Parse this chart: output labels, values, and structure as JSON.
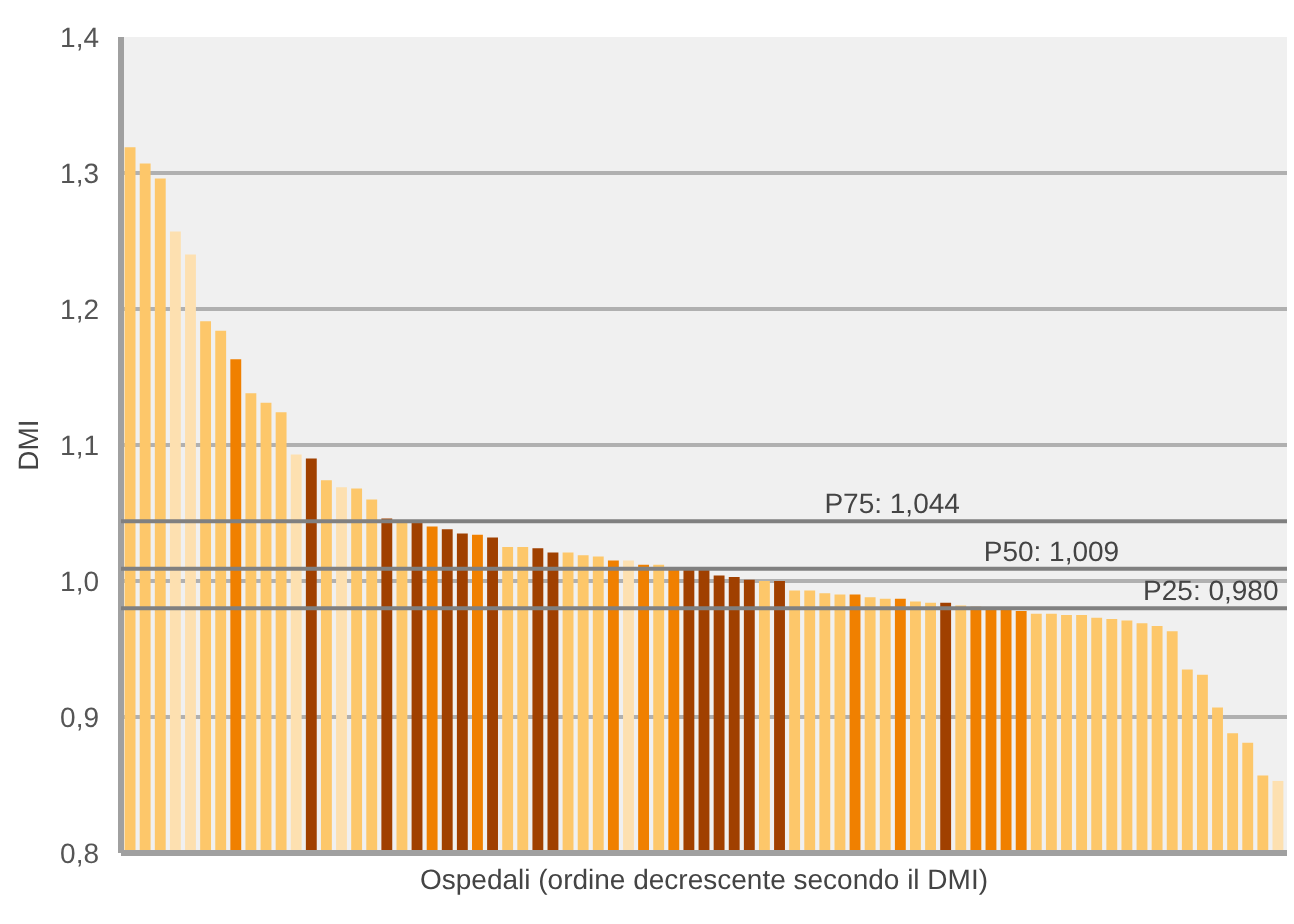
{
  "chart_data": {
    "type": "bar",
    "xlabel": "Ospedali (ordine decrescente secondo il DMI)",
    "ylabel": "DMI",
    "categories": [
      null,
      null,
      null,
      null,
      null,
      null,
      null,
      null,
      null,
      null,
      null,
      null,
      null,
      null,
      null,
      null,
      null,
      null,
      null,
      null,
      null,
      null,
      null,
      null,
      null,
      null,
      null,
      null,
      null,
      null,
      null,
      null,
      null,
      null,
      null,
      null,
      null,
      null,
      null,
      null,
      null,
      null,
      null,
      null,
      null,
      null,
      null,
      null,
      null,
      null,
      null,
      null,
      null,
      null,
      null,
      null,
      null,
      null,
      null,
      null,
      null,
      null,
      null,
      null,
      null,
      null,
      null,
      null,
      null,
      null,
      null,
      null,
      null,
      null,
      null,
      null,
      null
    ],
    "values": [
      1.319,
      1.307,
      1.296,
      1.257,
      1.24,
      1.191,
      1.184,
      1.163,
      1.138,
      1.131,
      1.124,
      1.093,
      1.09,
      1.074,
      1.069,
      1.068,
      1.06,
      1.046,
      1.044,
      1.043,
      1.04,
      1.038,
      1.035,
      1.034,
      1.032,
      1.025,
      1.025,
      1.024,
      1.021,
      1.021,
      1.019,
      1.018,
      1.015,
      1.015,
      1.012,
      1.012,
      1.01,
      1.01,
      1.009,
      1.004,
      1.003,
      1.001,
      1.0,
      1.0,
      0.993,
      0.993,
      0.991,
      0.99,
      0.99,
      0.988,
      0.987,
      0.987,
      0.985,
      0.984,
      0.984,
      0.982,
      0.981,
      0.979,
      0.979,
      0.978,
      0.976,
      0.976,
      0.975,
      0.975,
      0.973,
      0.972,
      0.971,
      0.969,
      0.967,
      0.963,
      0.935,
      0.931,
      0.907,
      0.888,
      0.881,
      0.857,
      0.853
    ],
    "colors": [
      "#fdc76a",
      "#fdc76a",
      "#fdc76a",
      "#fde0b0",
      "#fde0b0",
      "#fdc76a",
      "#fdc76a",
      "#f08000",
      "#fdc76a",
      "#fdc76a",
      "#fdc76a",
      "#fde0b0",
      "#a04000",
      "#fdc76a",
      "#fde0b0",
      "#fdc76a",
      "#fdc76a",
      "#a04000",
      "#fdc76a",
      "#a04000",
      "#f08000",
      "#a04000",
      "#a04000",
      "#f08000",
      "#a04000",
      "#fdc76a",
      "#fdc76a",
      "#a04000",
      "#a04000",
      "#fdc76a",
      "#fdc76a",
      "#fdc76a",
      "#f08000",
      "#fde0b0",
      "#f08000",
      "#fdc76a",
      "#f08000",
      "#a04000",
      "#a04000",
      "#a04000",
      "#a04000",
      "#a04000",
      "#fdc76a",
      "#a04000",
      "#fdc76a",
      "#fdc76a",
      "#fdc76a",
      "#fdc76a",
      "#f08000",
      "#fdc76a",
      "#fdc76a",
      "#f08000",
      "#fdc76a",
      "#fdc76a",
      "#a04000",
      "#fdc76a",
      "#f08000",
      "#f08000",
      "#f08000",
      "#f08000",
      "#fdc76a",
      "#fdc76a",
      "#fdc76a",
      "#fdc76a",
      "#fdc76a",
      "#fdc76a",
      "#fdc76a",
      "#fdc76a",
      "#fdc76a",
      "#fdc76a",
      "#fdc76a",
      "#fdc76a",
      "#fdc76a",
      "#fdc76a",
      "#fdc76a",
      "#fdc76a",
      "#fde0b0"
    ],
    "ylim": [
      0.8,
      1.4
    ],
    "yticks": [
      {
        "value": 0.8,
        "label": "0,8"
      },
      {
        "value": 0.9,
        "label": "0,9"
      },
      {
        "value": 1.0,
        "label": "1,0"
      },
      {
        "value": 1.1,
        "label": "1,1"
      },
      {
        "value": 1.2,
        "label": "1,2"
      },
      {
        "value": 1.3,
        "label": "1,3"
      },
      {
        "value": 1.4,
        "label": "1,4"
      }
    ],
    "grid": "y",
    "ref_lines": [
      {
        "axis": "y",
        "value": 1.044,
        "label": "P75: 1,044",
        "color": "#808080"
      },
      {
        "axis": "y",
        "value": 1.009,
        "label": "P50: 1,009",
        "color": "#808080"
      },
      {
        "axis": "y",
        "value": 0.98,
        "label": "P25: 0,980",
        "color": "#808080"
      }
    ]
  }
}
